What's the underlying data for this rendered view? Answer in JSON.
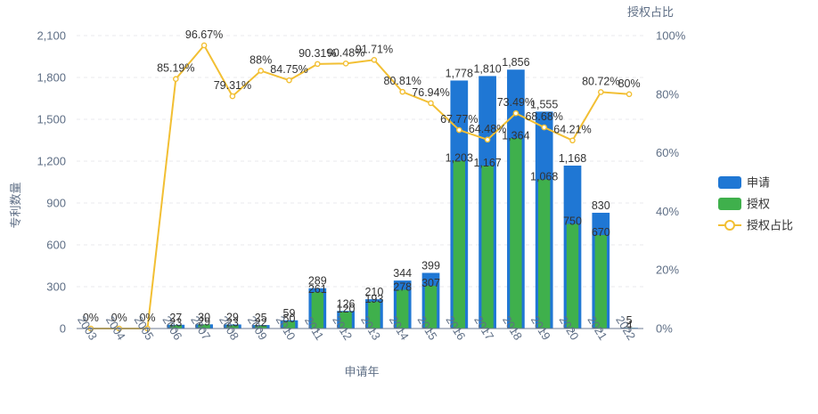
{
  "chart_data": {
    "type": "bar+line",
    "categories": [
      "2003",
      "2004",
      "2005",
      "2006",
      "2007",
      "2008",
      "2009",
      "2010",
      "2011",
      "2012",
      "2013",
      "2014",
      "2015",
      "2016",
      "2017",
      "2018",
      "2019",
      "2020",
      "2021",
      "2022"
    ],
    "series": [
      {
        "name": "申请",
        "type": "bar",
        "axis": "left",
        "color": "#1f77d4",
        "values": [
          0,
          0,
          0,
          27,
          30,
          29,
          25,
          59,
          289,
          126,
          210,
          344,
          399,
          1778,
          1810,
          1856,
          1555,
          1168,
          830,
          5
        ]
      },
      {
        "name": "授权",
        "type": "bar",
        "axis": "left",
        "color": "#3fb04c",
        "values": [
          0,
          0,
          0,
          23,
          29,
          23,
          22,
          50,
          261,
          120,
          193,
          278,
          307,
          1203,
          1167,
          1364,
          1068,
          750,
          670,
          4
        ]
      },
      {
        "name": "授权占比",
        "type": "line",
        "axis": "right",
        "color": "#f2bf33",
        "values": [
          0,
          0,
          0,
          85.19,
          96.67,
          79.31,
          88,
          84.75,
          90.31,
          90.48,
          91.71,
          80.81,
          76.94,
          67.77,
          64.48,
          73.49,
          68.68,
          64.21,
          80.72,
          80
        ]
      }
    ],
    "data_labels": {
      "apply": [
        "",
        "",
        "",
        "27",
        "30",
        "29",
        "25",
        "59",
        "289",
        "126",
        "210",
        "344",
        "399",
        "1,778",
        "1,810",
        "1,856",
        "1,555",
        "1,168",
        "830",
        "5"
      ],
      "grant": [
        "",
        "",
        "",
        "23",
        "29",
        "23",
        "22",
        "50",
        "261",
        "120",
        "193",
        "278",
        "307",
        "1,203",
        "1,167",
        "1,364",
        "1,068",
        "750",
        "670",
        "4"
      ],
      "ratio": [
        "0%",
        "0%",
        "0%",
        "85.19%",
        "96.67%",
        "79.31%",
        "88%",
        "84.75%",
        "90.31%",
        "90.48%",
        "91.71%",
        "80.81%",
        "76.94%",
        "67.77%",
        "64.48%",
        "73.49%",
        "68.68%",
        "64.21%",
        "80.72%",
        "80%"
      ]
    },
    "xlabel": "申请年",
    "ylabel": "专利数量",
    "y2label": "授权占比",
    "ylim": [
      0,
      2100
    ],
    "y2lim": [
      0,
      100
    ],
    "yticks": [
      "0",
      "300",
      "600",
      "900",
      "1,200",
      "1,500",
      "1,800",
      "2,100"
    ],
    "y2ticks": [
      "0%",
      "20%",
      "40%",
      "60%",
      "80%",
      "100%"
    ],
    "legend": [
      "申请",
      "授权",
      "授权占比"
    ],
    "legend_position": "right",
    "grid": true
  }
}
